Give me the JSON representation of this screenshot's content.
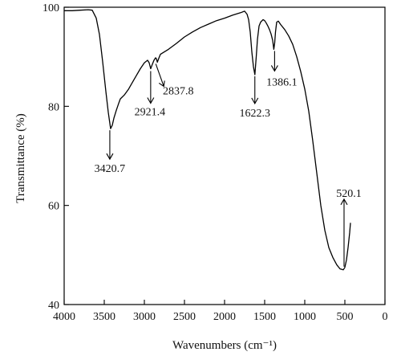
{
  "chart_data": {
    "type": "line",
    "title": "",
    "xlabel": "Wavenumbers (cm⁻¹)",
    "ylabel": "Transmittance (%)",
    "xlim": [
      4000,
      0
    ],
    "ylim": [
      40,
      100
    ],
    "x_reversed": true,
    "grid": false,
    "legend": "none",
    "x_ticks": [
      4000,
      3500,
      3000,
      2500,
      2000,
      1500,
      1000,
      500,
      0
    ],
    "x_tick_labels": [
      "4000",
      "3500",
      "3000",
      "2500",
      "2000",
      "1500",
      "1000",
      "500",
      "0"
    ],
    "y_ticks": [
      40,
      60,
      80,
      100
    ],
    "y_tick_labels": [
      "40",
      "60",
      "80",
      "100"
    ],
    "series": [
      {
        "color": "#000000",
        "x": [
          4000,
          3900,
          3800,
          3700,
          3650,
          3600,
          3560,
          3520,
          3480,
          3450,
          3420.7,
          3400,
          3380,
          3350,
          3320,
          3300,
          3250,
          3200,
          3150,
          3100,
          3050,
          3000,
          2960,
          2940,
          2921.4,
          2900,
          2880,
          2860,
          2850,
          2837.8,
          2820,
          2800,
          2700,
          2600,
          2500,
          2400,
          2300,
          2200,
          2100,
          2000,
          1900,
          1800,
          1750,
          1720,
          1700,
          1680,
          1660,
          1640,
          1622.3,
          1605,
          1590,
          1570,
          1550,
          1520,
          1500,
          1480,
          1460,
          1440,
          1420,
          1400,
          1386.1,
          1375,
          1365,
          1350,
          1330,
          1300,
          1250,
          1200,
          1150,
          1100,
          1050,
          1000,
          950,
          900,
          850,
          800,
          750,
          700,
          650,
          600,
          560,
          520.1,
          500,
          480,
          460,
          440,
          430
        ],
        "y": [
          99.3,
          99.3,
          99.4,
          99.5,
          99.4,
          97.8,
          94.5,
          89.0,
          83.0,
          78.8,
          75.5,
          76.2,
          77.6,
          79.2,
          80.6,
          81.5,
          82.3,
          83.4,
          84.8,
          86.2,
          87.6,
          88.8,
          89.3,
          88.8,
          87.6,
          88.5,
          89.3,
          89.8,
          89.6,
          88.9,
          89.7,
          90.5,
          91.5,
          92.7,
          94.0,
          95.0,
          95.9,
          96.6,
          97.3,
          97.8,
          98.4,
          98.9,
          99.2,
          98.6,
          97.5,
          95.0,
          91.0,
          88.0,
          86.4,
          90.0,
          93.5,
          96.2,
          97.0,
          97.5,
          97.3,
          96.8,
          96.2,
          95.5,
          94.6,
          93.3,
          91.5,
          92.8,
          95.0,
          97.0,
          97.2,
          96.5,
          95.5,
          94.2,
          92.5,
          90.0,
          87.0,
          83.5,
          79.0,
          73.0,
          66.5,
          60.0,
          55.0,
          51.5,
          49.5,
          48.0,
          47.2,
          47.0,
          47.5,
          49.0,
          51.5,
          54.5,
          56.5
        ]
      }
    ],
    "annotations": [
      {
        "label": "3420.7",
        "x": 3420.7,
        "y": 75.5,
        "arrow": "down"
      },
      {
        "label": "2921.4",
        "x": 2921.4,
        "y": 87.6,
        "arrow": "down"
      },
      {
        "label": "2837.8",
        "x": 2837.8,
        "y": 88.9,
        "arrow": "diagonal"
      },
      {
        "label": "1622.3",
        "x": 1622.3,
        "y": 86.4,
        "arrow": "down"
      },
      {
        "label": "1386.1",
        "x": 1386.1,
        "y": 91.5,
        "arrow": "down"
      },
      {
        "label": "520.1",
        "x": 520.1,
        "y": 47.0,
        "arrow": "up"
      }
    ]
  }
}
